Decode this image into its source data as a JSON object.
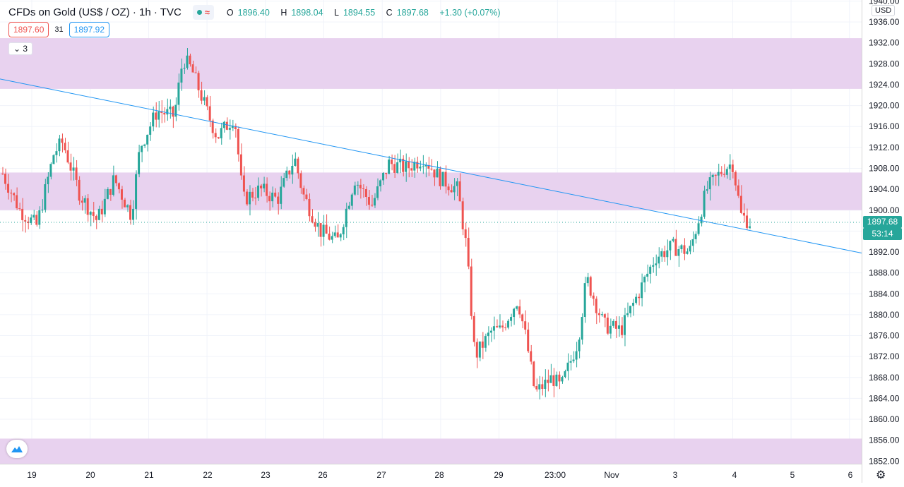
{
  "legend": {
    "title": "CFDs on Gold (US$ / OZ) · 1h · TVC",
    "open_label": "O",
    "open": "1896.40",
    "high_label": "H",
    "high": "1898.04",
    "low_label": "L",
    "low": "1894.55",
    "close_label": "C",
    "close": "1897.68",
    "change": "+1.30 (+0.07%)"
  },
  "trade": {
    "sell": "1897.60",
    "spread": "31",
    "buy": "1897.92"
  },
  "indicators_count": "3",
  "currency": "USD",
  "last_price": "1897.68",
  "countdown": "53:14",
  "colors": {
    "up": "#26a69a",
    "down": "#ef5350",
    "zone": "#e8d2ef",
    "trendline": "#2196f3"
  },
  "chart_data": {
    "type": "candlestick",
    "symbol": "CFDs on Gold (US$ / OZ)",
    "interval": "1h",
    "y_ticks": [
      1852,
      1856,
      1860,
      1864,
      1868,
      1872,
      1876,
      1880,
      1884,
      1888,
      1892,
      1896,
      1900,
      1904,
      1908,
      1912,
      1916,
      1920,
      1924,
      1928,
      1932,
      1936,
      1940
    ],
    "y_tick_labels": [
      "1852.00",
      "1856.00",
      "1860.00",
      "1864.00",
      "1868.00",
      "1872.00",
      "1876.00",
      "1880.00",
      "1884.00",
      "1888.00",
      "1892.00",
      "1896.00",
      "1900.00",
      "1904.00",
      "1908.00",
      "1912.00",
      "1916.00",
      "1920.00",
      "1924.00",
      "1928.00",
      "1932.00",
      "1936.00",
      "1940.00"
    ],
    "ylim": [
      1851.5,
      1940.2
    ],
    "x_ticks": [
      "19",
      "20",
      "21",
      "22",
      "23",
      "26",
      "27",
      "28",
      "29",
      "23:00",
      "Nov",
      "3",
      "4",
      "5",
      "6"
    ],
    "zones": [
      {
        "from": 1923.2,
        "to": 1932.9
      },
      {
        "from": 1900.0,
        "to": 1907.2
      },
      {
        "from": 1851.5,
        "to": 1856.3
      }
    ],
    "trendline": {
      "from": [
        0,
        1925.1
      ],
      "to": [
        1,
        1891.8
      ]
    },
    "last_price_line": 1897.68,
    "path_hint": [
      [
        0.0,
        1907
      ],
      [
        0.02,
        1900
      ],
      [
        0.04,
        1897
      ],
      [
        0.06,
        1911
      ],
      [
        0.07,
        1913
      ],
      [
        0.09,
        1903
      ],
      [
        0.11,
        1898
      ],
      [
        0.13,
        1906
      ],
      [
        0.15,
        1899
      ],
      [
        0.16,
        1912
      ],
      [
        0.18,
        1919
      ],
      [
        0.2,
        1918
      ],
      [
        0.21,
        1929
      ],
      [
        0.22,
        1927
      ],
      [
        0.24,
        1918
      ],
      [
        0.25,
        1914
      ],
      [
        0.27,
        1918
      ],
      [
        0.28,
        1902
      ],
      [
        0.3,
        1904
      ],
      [
        0.32,
        1902
      ],
      [
        0.34,
        1910
      ],
      [
        0.35,
        1903
      ],
      [
        0.37,
        1896
      ],
      [
        0.39,
        1894
      ],
      [
        0.41,
        1906
      ],
      [
        0.43,
        1901
      ],
      [
        0.45,
        1909
      ],
      [
        0.47,
        1908
      ],
      [
        0.49,
        1910
      ],
      [
        0.51,
        1906
      ],
      [
        0.53,
        1904
      ],
      [
        0.54,
        1893
      ],
      [
        0.55,
        1872
      ],
      [
        0.57,
        1877
      ],
      [
        0.58,
        1877
      ],
      [
        0.6,
        1883
      ],
      [
        0.61,
        1875
      ],
      [
        0.62,
        1865
      ],
      [
        0.64,
        1868
      ],
      [
        0.65,
        1866
      ],
      [
        0.67,
        1875
      ],
      [
        0.68,
        1887
      ],
      [
        0.7,
        1878
      ],
      [
        0.72,
        1877
      ],
      [
        0.74,
        1884
      ],
      [
        0.76,
        1891
      ],
      [
        0.78,
        1893
      ],
      [
        0.8,
        1892
      ],
      [
        0.82,
        1904
      ],
      [
        0.84,
        1908
      ],
      [
        0.85,
        1909
      ],
      [
        0.86,
        1899
      ],
      [
        0.87,
        1897.68
      ]
    ]
  }
}
